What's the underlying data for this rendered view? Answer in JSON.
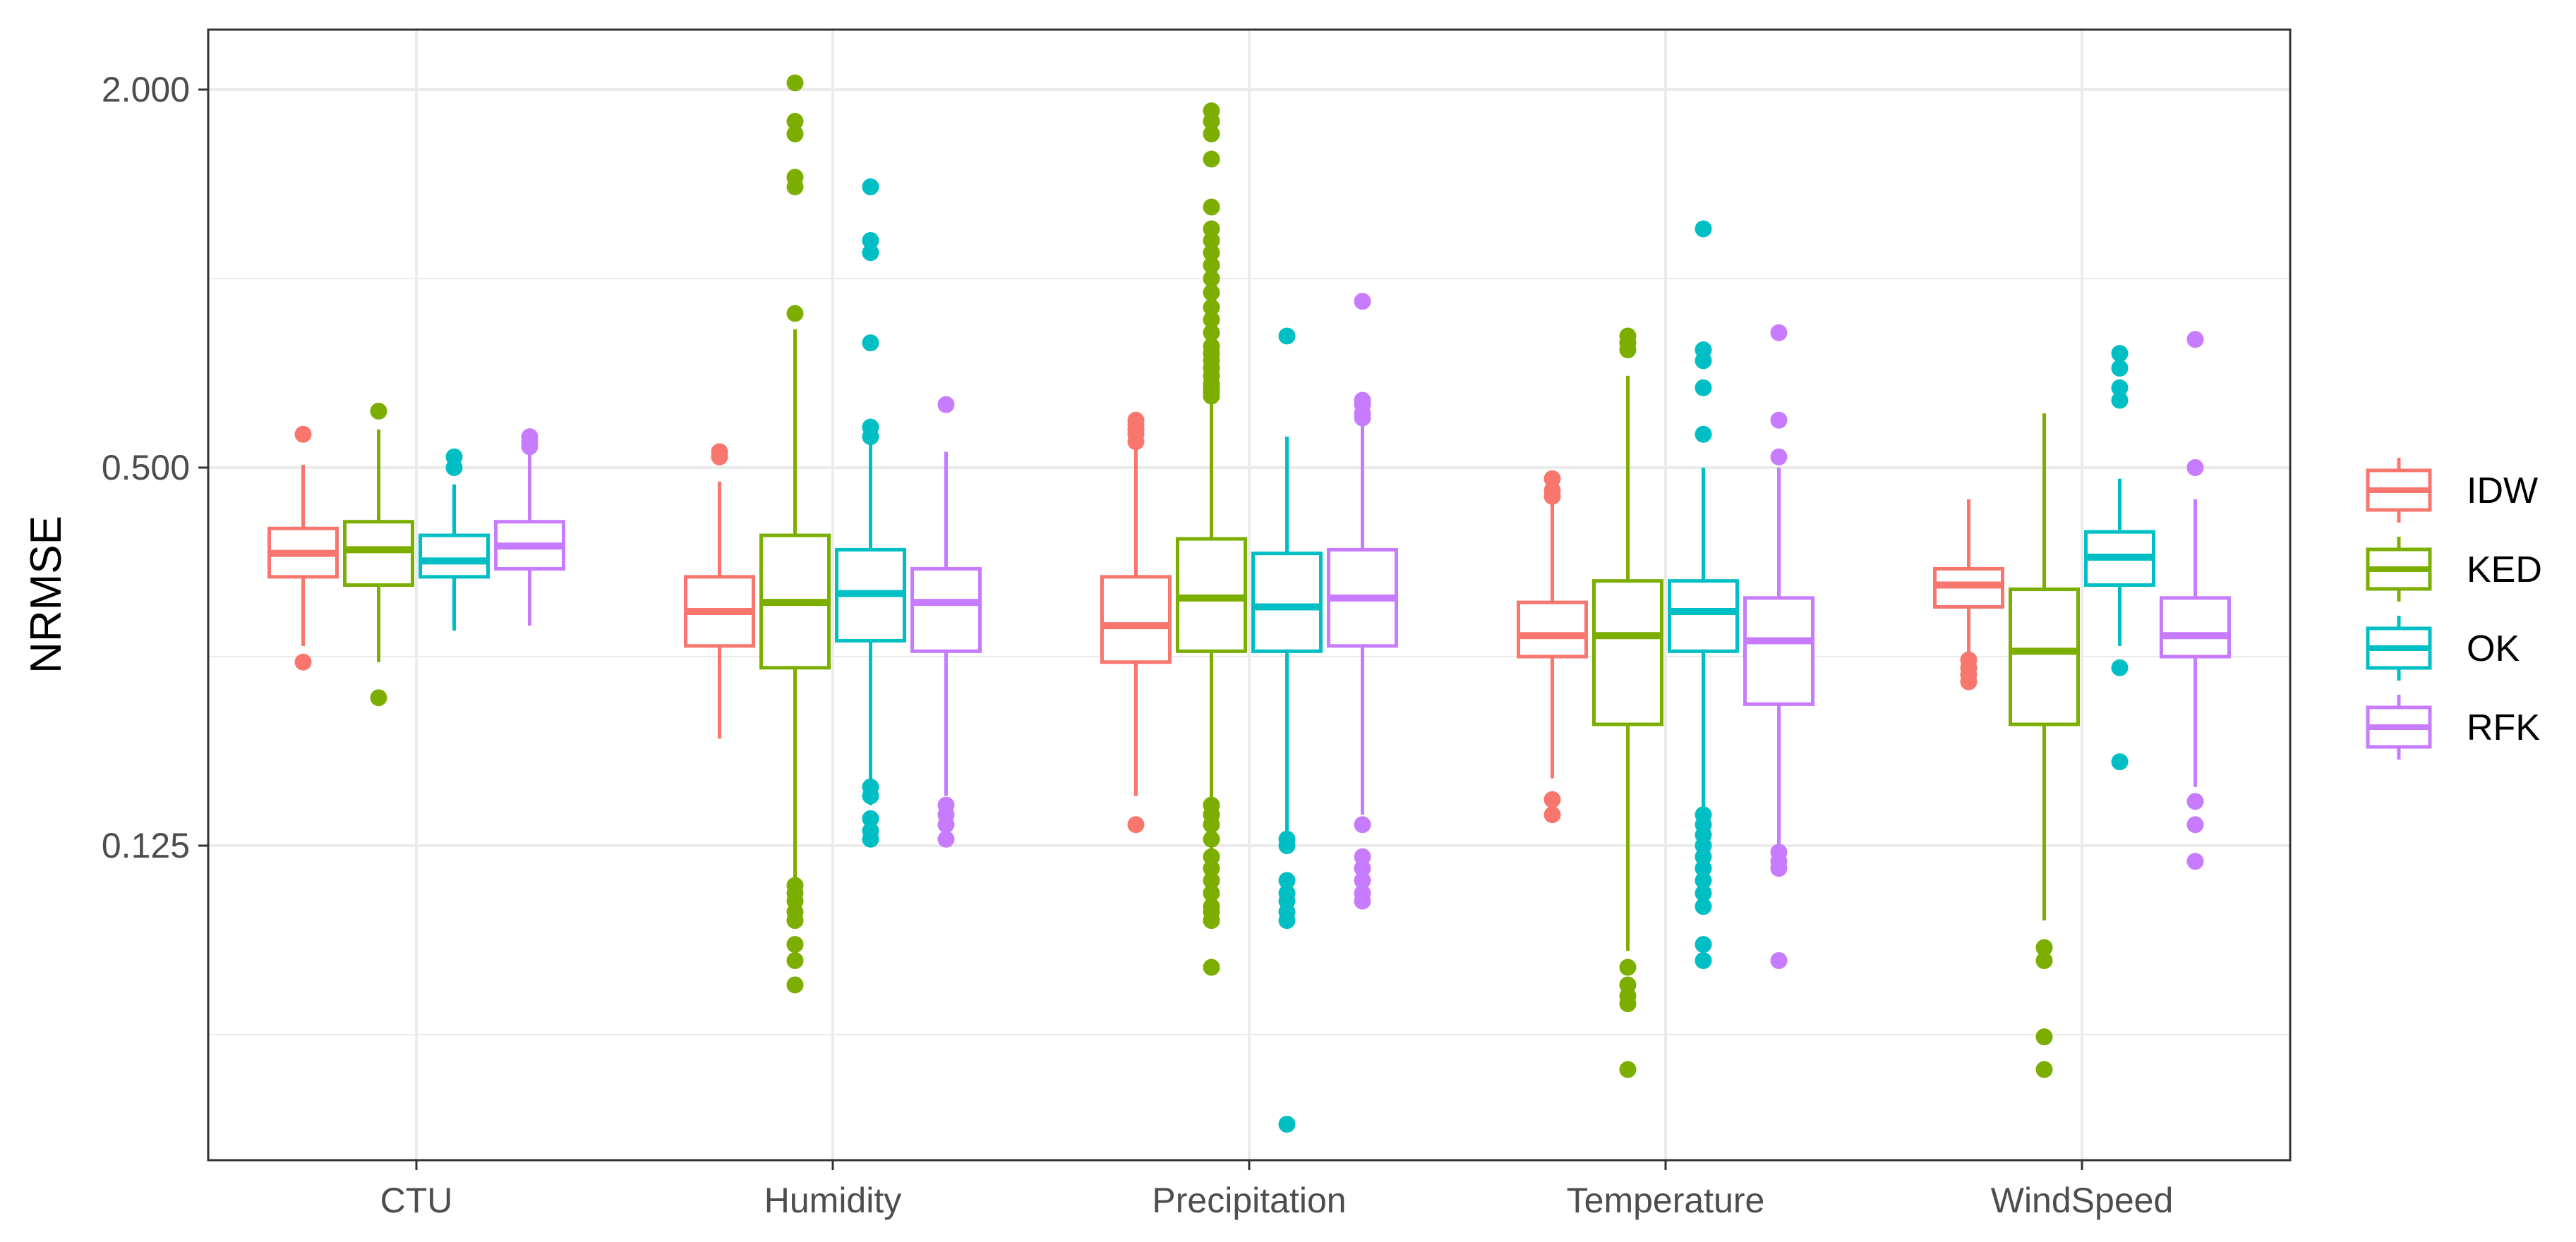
{
  "chart_data": {
    "type": "boxplot",
    "title": "",
    "xlabel": "",
    "ylabel": "NRMSE",
    "y_scale": "log2",
    "ylim": [
      0.035,
      2.5
    ],
    "y_ticks": [
      0.125,
      0.5,
      2.0
    ],
    "y_tick_labels": [
      "0.125",
      "0.500",
      "2.000"
    ],
    "grid": true,
    "legend_position": "right",
    "categories": [
      "CTU",
      "Humidity",
      "Precipitation",
      "Temperature",
      "WindSpeed"
    ],
    "series": [
      {
        "name": "IDW",
        "color": "#F8766D",
        "boxes": [
          {
            "category": "CTU",
            "lower_whisker": 0.26,
            "q1": 0.335,
            "median": 0.365,
            "q3": 0.4,
            "upper_whisker": 0.505,
            "outliers": [
              0.245,
              0.565
            ]
          },
          {
            "category": "Humidity",
            "lower_whisker": 0.185,
            "q1": 0.26,
            "median": 0.295,
            "q3": 0.335,
            "upper_whisker": 0.475,
            "outliers": [
              0.52,
              0.53
            ]
          },
          {
            "category": "Precipitation",
            "lower_whisker": 0.15,
            "q1": 0.245,
            "median": 0.28,
            "q3": 0.335,
            "upper_whisker": 0.545,
            "outliers": [
              0.135,
              0.55,
              0.565,
              0.575,
              0.585,
              0.595
            ]
          },
          {
            "category": "Temperature",
            "lower_whisker": 0.16,
            "q1": 0.25,
            "median": 0.27,
            "q3": 0.305,
            "upper_whisker": 0.44,
            "outliers": [
              0.14,
              0.148,
              0.45,
              0.46,
              0.48
            ]
          },
          {
            "category": "WindSpeed",
            "lower_whisker": 0.235,
            "q1": 0.3,
            "median": 0.325,
            "q3": 0.345,
            "upper_whisker": 0.445,
            "outliers": [
              0.228,
              0.234,
              0.24,
              0.247
            ]
          }
        ]
      },
      {
        "name": "KED",
        "color": "#7CAE00",
        "boxes": [
          {
            "category": "CTU",
            "lower_whisker": 0.245,
            "q1": 0.325,
            "median": 0.37,
            "q3": 0.41,
            "upper_whisker": 0.575,
            "outliers": [
              0.215,
              0.615
            ]
          },
          {
            "category": "Humidity",
            "lower_whisker": 0.095,
            "q1": 0.24,
            "median": 0.305,
            "q3": 0.39,
            "upper_whisker": 0.83,
            "outliers": [
              0.075,
              0.082,
              0.087,
              0.095,
              0.098,
              0.102,
              0.105,
              0.108,
              0.88,
              1.4,
              1.45,
              1.7,
              1.78,
              2.05
            ]
          },
          {
            "category": "Precipitation",
            "lower_whisker": 0.098,
            "q1": 0.255,
            "median": 0.31,
            "q3": 0.385,
            "upper_whisker": 0.65,
            "outliers": [
              0.08,
              0.095,
              0.098,
              0.1,
              0.105,
              0.11,
              0.115,
              0.12,
              0.128,
              0.135,
              0.14,
              0.145,
              0.65,
              0.66,
              0.67,
              0.68,
              0.7,
              0.72,
              0.74,
              0.76,
              0.78,
              0.82,
              0.86,
              0.9,
              0.95,
              1.0,
              1.05,
              1.1,
              1.15,
              1.2,
              1.3,
              1.55,
              1.7,
              1.78,
              1.85
            ]
          },
          {
            "category": "Temperature",
            "lower_whisker": 0.085,
            "q1": 0.195,
            "median": 0.27,
            "q3": 0.33,
            "upper_whisker": 0.7,
            "outliers": [
              0.055,
              0.07,
              0.072,
              0.075,
              0.08,
              0.77,
              0.79,
              0.81
            ]
          },
          {
            "category": "WindSpeed",
            "lower_whisker": 0.095,
            "q1": 0.195,
            "median": 0.255,
            "q3": 0.32,
            "upper_whisker": 0.61,
            "outliers": [
              0.055,
              0.062,
              0.082,
              0.086
            ]
          }
        ]
      },
      {
        "name": "OK",
        "color": "#00BFC4",
        "boxes": [
          {
            "category": "CTU",
            "lower_whisker": 0.275,
            "q1": 0.335,
            "median": 0.355,
            "q3": 0.39,
            "upper_whisker": 0.47,
            "outliers": [
              0.5,
              0.52
            ]
          },
          {
            "category": "Humidity",
            "lower_whisker": 0.145,
            "q1": 0.265,
            "median": 0.315,
            "q3": 0.37,
            "upper_whisker": 0.545,
            "outliers": [
              0.128,
              0.132,
              0.138,
              0.15,
              0.155,
              0.56,
              0.58,
              0.79,
              1.1,
              1.15,
              1.4
            ]
          },
          {
            "category": "Precipitation",
            "lower_whisker": 0.125,
            "q1": 0.255,
            "median": 0.3,
            "q3": 0.365,
            "upper_whisker": 0.56,
            "outliers": [
              0.045,
              0.095,
              0.098,
              0.102,
              0.105,
              0.11,
              0.125,
              0.128,
              0.81
            ]
          },
          {
            "category": "Temperature",
            "lower_whisker": 0.125,
            "q1": 0.255,
            "median": 0.295,
            "q3": 0.33,
            "upper_whisker": 0.5,
            "outliers": [
              0.082,
              0.087,
              0.1,
              0.105,
              0.11,
              0.115,
              0.12,
              0.125,
              0.13,
              0.135,
              0.14,
              0.565,
              0.67,
              0.74,
              0.77,
              1.2
            ]
          },
          {
            "category": "WindSpeed",
            "lower_whisker": 0.26,
            "q1": 0.325,
            "median": 0.36,
            "q3": 0.395,
            "upper_whisker": 0.48,
            "outliers": [
              0.17,
              0.24,
              0.64,
              0.67,
              0.72,
              0.76
            ]
          }
        ]
      },
      {
        "name": "RFK",
        "color": "#C77CFF",
        "boxes": [
          {
            "category": "CTU",
            "lower_whisker": 0.28,
            "q1": 0.345,
            "median": 0.375,
            "q3": 0.41,
            "upper_whisker": 0.53,
            "outliers": [
              0.54,
              0.55,
              0.56
            ]
          },
          {
            "category": "Humidity",
            "lower_whisker": 0.15,
            "q1": 0.255,
            "median": 0.305,
            "q3": 0.345,
            "upper_whisker": 0.53,
            "outliers": [
              0.128,
              0.135,
              0.14,
              0.145,
              0.63
            ]
          },
          {
            "category": "Precipitation",
            "lower_whisker": 0.14,
            "q1": 0.26,
            "median": 0.31,
            "q3": 0.37,
            "upper_whisker": 0.6,
            "outliers": [
              0.102,
              0.105,
              0.11,
              0.115,
              0.12,
              0.135,
              0.6,
              0.61,
              0.63,
              0.64,
              0.92
            ]
          },
          {
            "category": "Temperature",
            "lower_whisker": 0.12,
            "q1": 0.21,
            "median": 0.265,
            "q3": 0.31,
            "upper_whisker": 0.5,
            "outliers": [
              0.082,
              0.115,
              0.118,
              0.122,
              0.52,
              0.595,
              0.82
            ]
          },
          {
            "category": "WindSpeed",
            "lower_whisker": 0.155,
            "q1": 0.25,
            "median": 0.27,
            "q3": 0.31,
            "upper_whisker": 0.445,
            "outliers": [
              0.118,
              0.135,
              0.147,
              0.5,
              0.8
            ]
          }
        ]
      }
    ]
  }
}
